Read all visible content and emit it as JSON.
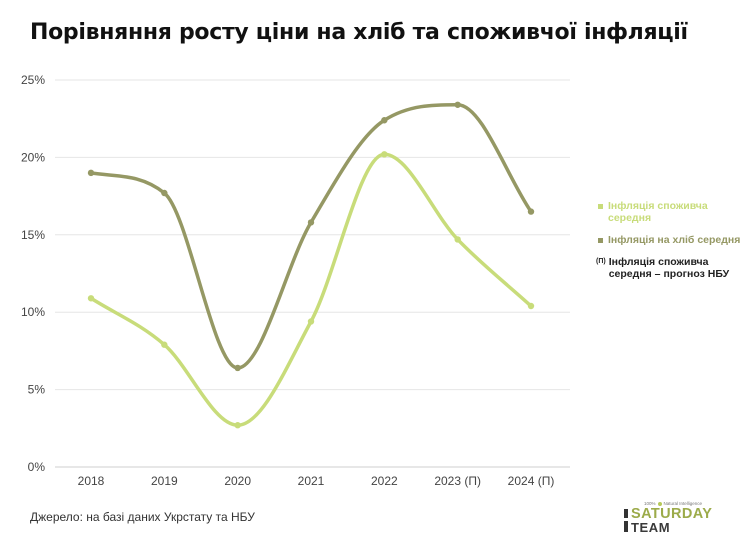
{
  "title": "Порівняння росту ціни на хліб та споживчої інфляції",
  "source": "Джерело: на базі даних Укрстату та НБУ",
  "logo": {
    "tagline_left": "100%",
    "tagline_right": "Natural Intelligence",
    "word1": "SATURDAY",
    "word2": "TEAM"
  },
  "colors": {
    "consumer": "#c8dc7a",
    "bread": "#959864",
    "forecast": "#222222",
    "grid": "#e6e6e6"
  },
  "legend": [
    {
      "marker": "square",
      "label": "Інфляція споживча середня",
      "color": "#c8dc7a"
    },
    {
      "marker": "square",
      "label": "Інфляція на хліб середня",
      "color": "#959864"
    },
    {
      "marker": "(П)",
      "label": "Інфляція споживча середня – прогноз НБУ",
      "color": "#222222"
    }
  ],
  "chart_data": {
    "type": "line",
    "categories": [
      "2018",
      "2019",
      "2020",
      "2021",
      "2022",
      "2023 (П)",
      "2024 (П)"
    ],
    "y_ticks": [
      "0%",
      "5%",
      "10%",
      "15%",
      "20%",
      "25%"
    ],
    "ylim": [
      0,
      25
    ],
    "grid": true,
    "legend_position": "right",
    "series": [
      {
        "name": "Інфляція споживча середня",
        "values": [
          10.9,
          7.9,
          2.7,
          9.4,
          20.2,
          14.7,
          10.4
        ]
      },
      {
        "name": "Інфляція на хліб середня",
        "values": [
          19.0,
          17.7,
          6.4,
          15.8,
          22.4,
          23.4,
          16.5
        ]
      }
    ]
  }
}
